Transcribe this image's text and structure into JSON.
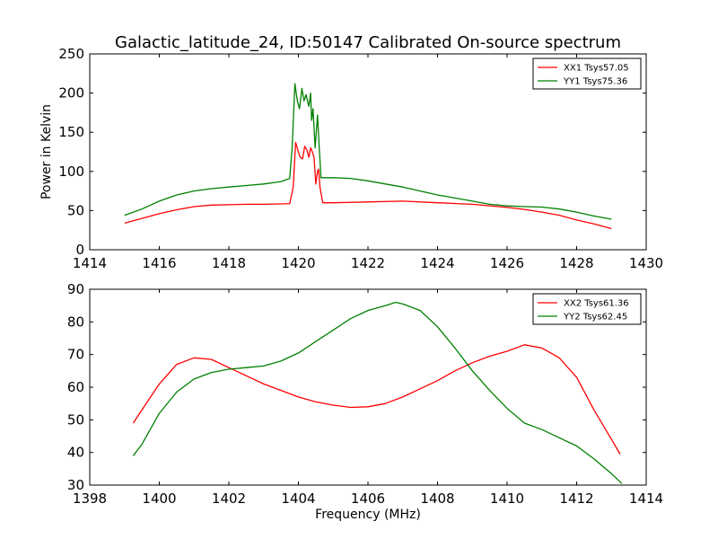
{
  "figure": {
    "title": "Galactic_latitude_24, ID:50147 Calibrated On-source spectrum"
  },
  "chart_data": [
    {
      "type": "line",
      "title": "Galactic_latitude_24, ID:50147 Calibrated On-source spectrum",
      "xlabel": "",
      "ylabel": "Power in Kelvin",
      "xlim": [
        1414,
        1430
      ],
      "ylim": [
        0,
        250
      ],
      "x_ticks": [
        1414,
        1416,
        1418,
        1420,
        1422,
        1424,
        1426,
        1428,
        1430
      ],
      "y_ticks": [
        0,
        50,
        100,
        150,
        200,
        250
      ],
      "grid": false,
      "legend_position": "top-right",
      "series": [
        {
          "name": "XX1 Tsys57.05",
          "color": "#ff0000",
          "points": [
            [
              1415.0,
              34
            ],
            [
              1415.5,
              40
            ],
            [
              1416.0,
              46
            ],
            [
              1416.5,
              51
            ],
            [
              1417.0,
              55
            ],
            [
              1417.5,
              57
            ],
            [
              1418.0,
              57.5
            ],
            [
              1418.5,
              58
            ],
            [
              1419.0,
              58
            ],
            [
              1419.5,
              58.5
            ],
            [
              1419.75,
              59
            ],
            [
              1419.85,
              80
            ],
            [
              1419.92,
              137
            ],
            [
              1420.0,
              125
            ],
            [
              1420.05,
              118
            ],
            [
              1420.12,
              116
            ],
            [
              1420.18,
              132
            ],
            [
              1420.25,
              127
            ],
            [
              1420.3,
              118
            ],
            [
              1420.35,
              130
            ],
            [
              1420.4,
              125
            ],
            [
              1420.45,
              118
            ],
            [
              1420.5,
              84
            ],
            [
              1420.55,
              100
            ],
            [
              1420.58,
              103
            ],
            [
              1420.62,
              80
            ],
            [
              1420.7,
              60
            ],
            [
              1421.0,
              60
            ],
            [
              1422.0,
              61
            ],
            [
              1423.0,
              62
            ],
            [
              1424.0,
              60
            ],
            [
              1425.0,
              58
            ],
            [
              1426.0,
              54
            ],
            [
              1426.5,
              51.5
            ],
            [
              1427.0,
              48
            ],
            [
              1427.5,
              44
            ],
            [
              1428.0,
              38
            ],
            [
              1428.5,
              33
            ],
            [
              1429.0,
              27
            ]
          ]
        },
        {
          "name": "YY1 Tsys75.36",
          "color": "#008000",
          "points": [
            [
              1415.0,
              44
            ],
            [
              1415.5,
              52
            ],
            [
              1416.0,
              62
            ],
            [
              1416.5,
              70
            ],
            [
              1417.0,
              75
            ],
            [
              1417.5,
              78
            ],
            [
              1418.0,
              80
            ],
            [
              1418.5,
              82
            ],
            [
              1419.0,
              84
            ],
            [
              1419.5,
              87
            ],
            [
              1419.75,
              91
            ],
            [
              1419.82,
              130
            ],
            [
              1419.9,
              212
            ],
            [
              1419.97,
              190
            ],
            [
              1420.03,
              180
            ],
            [
              1420.1,
              206
            ],
            [
              1420.16,
              190
            ],
            [
              1420.22,
              198
            ],
            [
              1420.3,
              183
            ],
            [
              1420.35,
              200
            ],
            [
              1420.38,
              165
            ],
            [
              1420.42,
              180
            ],
            [
              1420.48,
              130
            ],
            [
              1420.55,
              172
            ],
            [
              1420.6,
              130
            ],
            [
              1420.65,
              92
            ],
            [
              1421.0,
              92
            ],
            [
              1421.5,
              91
            ],
            [
              1422.0,
              88
            ],
            [
              1422.5,
              84
            ],
            [
              1423.0,
              80
            ],
            [
              1423.5,
              75
            ],
            [
              1424.0,
              70
            ],
            [
              1424.5,
              66
            ],
            [
              1425.0,
              62
            ],
            [
              1425.5,
              58
            ],
            [
              1426.0,
              56
            ],
            [
              1426.5,
              55
            ],
            [
              1427.0,
              54.5
            ],
            [
              1427.5,
              52
            ],
            [
              1428.0,
              48
            ],
            [
              1428.5,
              43
            ],
            [
              1429.0,
              39
            ]
          ]
        }
      ]
    },
    {
      "type": "line",
      "title": "",
      "xlabel": "Frequency (MHz)",
      "ylabel": "",
      "xlim": [
        1398,
        1414
      ],
      "ylim": [
        30,
        90
      ],
      "x_ticks": [
        1398,
        1400,
        1402,
        1404,
        1406,
        1408,
        1410,
        1412,
        1414
      ],
      "y_ticks": [
        30,
        40,
        50,
        60,
        70,
        80,
        90
      ],
      "grid": false,
      "legend_position": "top-right",
      "series": [
        {
          "name": "XX2 Tsys61.36",
          "color": "#ff0000",
          "points": [
            [
              1399.25,
              49
            ],
            [
              1399.5,
              53
            ],
            [
              1400.0,
              61
            ],
            [
              1400.5,
              67
            ],
            [
              1401.0,
              69
            ],
            [
              1401.5,
              68.5
            ],
            [
              1402.0,
              66
            ],
            [
              1402.5,
              63.5
            ],
            [
              1403.0,
              61
            ],
            [
              1403.5,
              59
            ],
            [
              1404.0,
              57
            ],
            [
              1404.5,
              55.5
            ],
            [
              1405.0,
              54.5
            ],
            [
              1405.5,
              53.8
            ],
            [
              1406.0,
              54
            ],
            [
              1406.5,
              55
            ],
            [
              1407.0,
              57
            ],
            [
              1407.5,
              59.5
            ],
            [
              1408.0,
              62
            ],
            [
              1408.5,
              65
            ],
            [
              1409.0,
              67.5
            ],
            [
              1409.5,
              69.5
            ],
            [
              1410.0,
              71
            ],
            [
              1410.5,
              73
            ],
            [
              1411.0,
              72
            ],
            [
              1411.5,
              69
            ],
            [
              1412.0,
              63
            ],
            [
              1412.5,
              53
            ],
            [
              1413.0,
              44
            ],
            [
              1413.25,
              39.5
            ]
          ]
        },
        {
          "name": "YY2 Tsys62.45",
          "color": "#008000",
          "points": [
            [
              1399.25,
              39
            ],
            [
              1399.5,
              42.5
            ],
            [
              1400.0,
              52
            ],
            [
              1400.5,
              58.5
            ],
            [
              1401.0,
              62.5
            ],
            [
              1401.5,
              64.5
            ],
            [
              1402.0,
              65.5
            ],
            [
              1402.5,
              66
            ],
            [
              1403.0,
              66.5
            ],
            [
              1403.5,
              68
            ],
            [
              1404.0,
              70.5
            ],
            [
              1404.5,
              74
            ],
            [
              1405.0,
              77.5
            ],
            [
              1405.5,
              81
            ],
            [
              1406.0,
              83.5
            ],
            [
              1406.5,
              85
            ],
            [
              1406.8,
              86
            ],
            [
              1407.0,
              85.5
            ],
            [
              1407.5,
              83.5
            ],
            [
              1408.0,
              78.5
            ],
            [
              1408.5,
              72
            ],
            [
              1409.0,
              65
            ],
            [
              1409.5,
              59
            ],
            [
              1410.0,
              53.5
            ],
            [
              1410.5,
              49
            ],
            [
              1411.0,
              47
            ],
            [
              1411.5,
              44.5
            ],
            [
              1412.0,
              42
            ],
            [
              1412.5,
              38
            ],
            [
              1413.0,
              33.5
            ],
            [
              1413.3,
              30.5
            ]
          ]
        }
      ]
    }
  ]
}
